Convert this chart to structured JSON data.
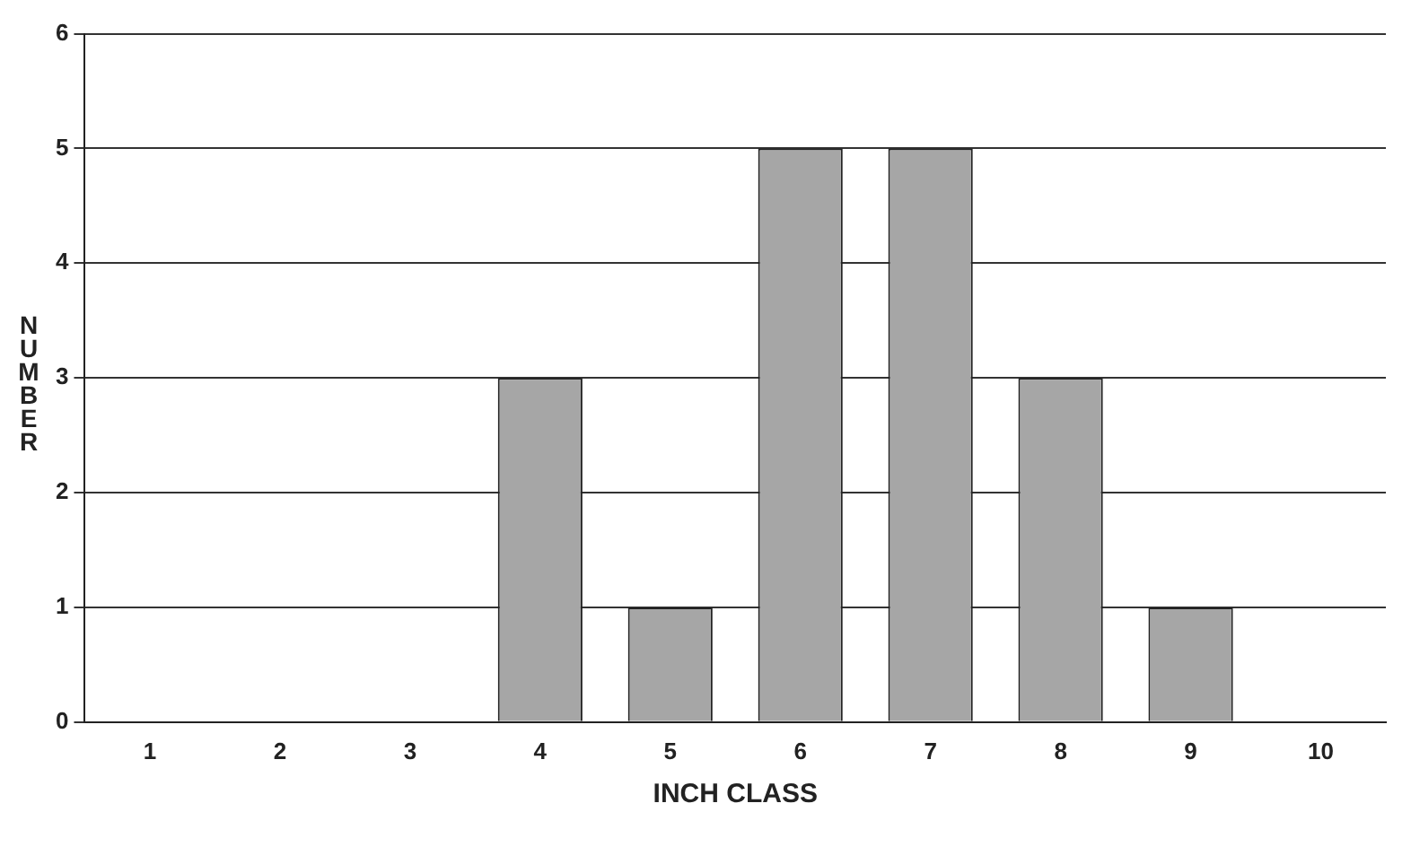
{
  "chart_data": {
    "type": "bar",
    "xlabel": "INCH CLASS",
    "ylabel": "NUMBER",
    "categories": [
      "1",
      "2",
      "3",
      "4",
      "5",
      "6",
      "7",
      "8",
      "9",
      "10"
    ],
    "values": [
      0,
      0,
      0,
      3,
      1,
      5,
      5,
      3,
      1,
      0
    ],
    "color": "#a6a6a6",
    "ylim": [
      0,
      6
    ],
    "yticks": [
      0,
      1,
      2,
      3,
      4,
      5,
      6
    ],
    "grid": "y"
  }
}
